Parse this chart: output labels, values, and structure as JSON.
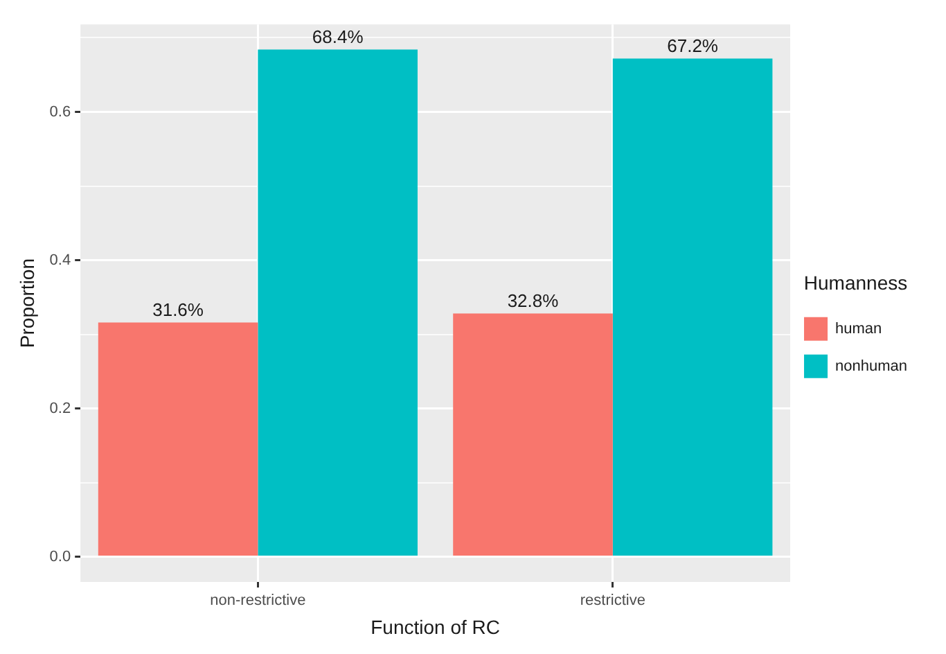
{
  "chart_data": {
    "type": "bar",
    "xlabel": "Function of RC",
    "ylabel": "Proportion",
    "legend_title": "Humanness",
    "categories": [
      "non-restrictive",
      "restrictive"
    ],
    "series": [
      {
        "name": "human",
        "color": "#f8766d",
        "values": [
          0.316,
          0.328
        ],
        "value_labels": [
          "31.6%",
          "32.8%"
        ]
      },
      {
        "name": "nonhuman",
        "color": "#00bfc4",
        "values": [
          0.684,
          0.672
        ],
        "value_labels": [
          "68.4%",
          "67.2%"
        ]
      }
    ],
    "ylim": [
      -0.034,
      0.718
    ],
    "yticks": [
      {
        "value": 0,
        "label": "0.0"
      },
      {
        "value": 0.1,
        "label": null
      },
      {
        "value": 0.2,
        "label": "0.2"
      },
      {
        "value": 0.3,
        "label": null
      },
      {
        "value": 0.4,
        "label": "0.4"
      },
      {
        "value": 0.5,
        "label": null
      },
      {
        "value": 0.6,
        "label": "0.6"
      },
      {
        "value": 0.7,
        "label": null
      }
    ],
    "grid": true,
    "legend": "right"
  }
}
